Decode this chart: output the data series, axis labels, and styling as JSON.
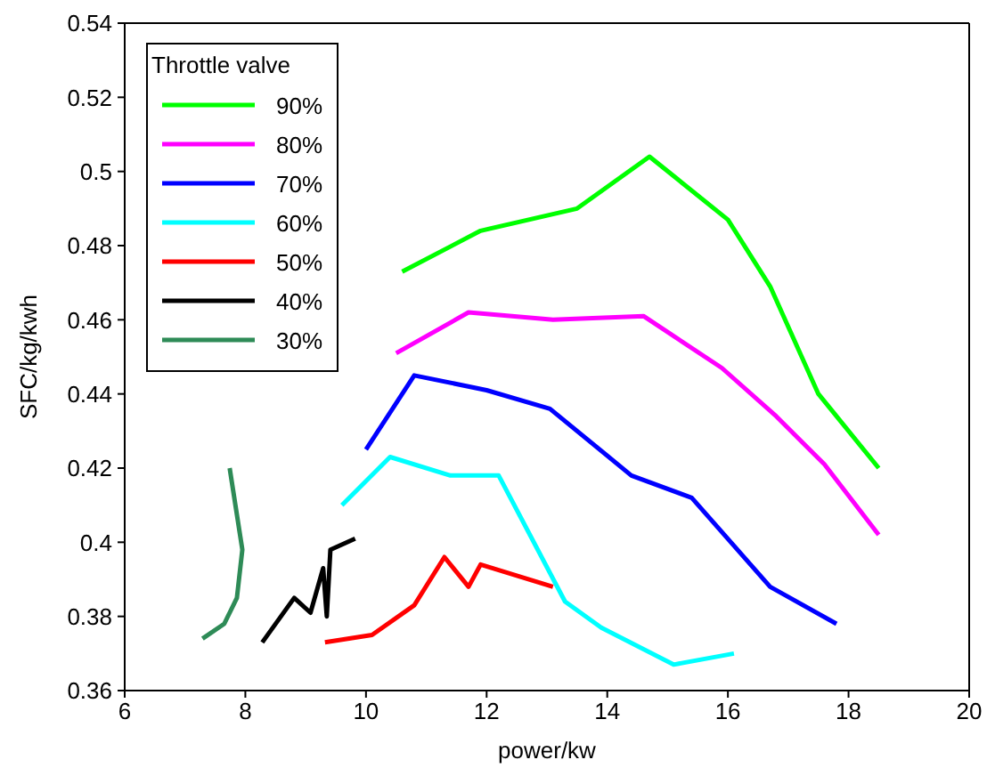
{
  "chart_data": {
    "type": "line",
    "xlabel": "power/kw",
    "ylabel": "SFC/kg/kwh",
    "legend_title": "Throttle valve",
    "legend": "top left",
    "marker": "none",
    "line_style": "solid",
    "xlim": [
      6,
      20
    ],
    "xticks": [
      6,
      8,
      10,
      12,
      14,
      16,
      18,
      20
    ],
    "ylim": [
      0.36,
      0.54
    ],
    "yticks": [
      0.36,
      0.38,
      0.4,
      0.42,
      0.44,
      0.46,
      0.48,
      0.5,
      0.52,
      0.54
    ],
    "series": [
      {
        "name": "90%",
        "color": "#00ff00",
        "x": [
          10.6,
          11.9,
          13.5,
          14.7,
          16.0,
          16.7,
          17.5,
          18.5
        ],
        "values": [
          0.473,
          0.484,
          0.49,
          0.504,
          0.487,
          0.469,
          0.44,
          0.42
        ]
      },
      {
        "name": "80%",
        "color": "#ff00ff",
        "x": [
          10.5,
          11.7,
          13.1,
          14.6,
          15.9,
          16.8,
          17.6,
          18.5
        ],
        "values": [
          0.451,
          0.462,
          0.46,
          0.461,
          0.447,
          0.434,
          0.421,
          0.402
        ]
      },
      {
        "name": "70%",
        "color": "#0000ff",
        "x": [
          10.0,
          10.8,
          12.0,
          13.05,
          14.4,
          15.4,
          16.7,
          17.8
        ],
        "values": [
          0.425,
          0.445,
          0.441,
          0.436,
          0.418,
          0.412,
          0.388,
          0.378
        ]
      },
      {
        "name": "60%",
        "color": "#00ffff",
        "x": [
          9.6,
          10.4,
          11.4,
          12.2,
          13.3,
          13.9,
          15.1,
          16.1
        ],
        "values": [
          0.41,
          0.423,
          0.418,
          0.418,
          0.384,
          0.377,
          0.367,
          0.37
        ]
      },
      {
        "name": "50%",
        "color": "#ff0000",
        "x": [
          9.32,
          10.1,
          10.8,
          11.3,
          11.7,
          11.9,
          12.5,
          13.1
        ],
        "values": [
          0.373,
          0.375,
          0.383,
          0.396,
          0.388,
          0.394,
          0.391,
          0.388
        ]
      },
      {
        "name": "40%",
        "color": "#000000",
        "x": [
          8.28,
          8.81,
          9.08,
          9.29,
          9.35,
          9.41,
          9.82
        ],
        "values": [
          0.373,
          0.385,
          0.381,
          0.393,
          0.38,
          0.398,
          0.401
        ]
      },
      {
        "name": "30%",
        "color": "#2e8b57",
        "x": [
          7.29,
          7.65,
          7.86,
          7.95,
          7.74
        ],
        "values": [
          0.374,
          0.378,
          0.385,
          0.398,
          0.42
        ]
      }
    ]
  }
}
